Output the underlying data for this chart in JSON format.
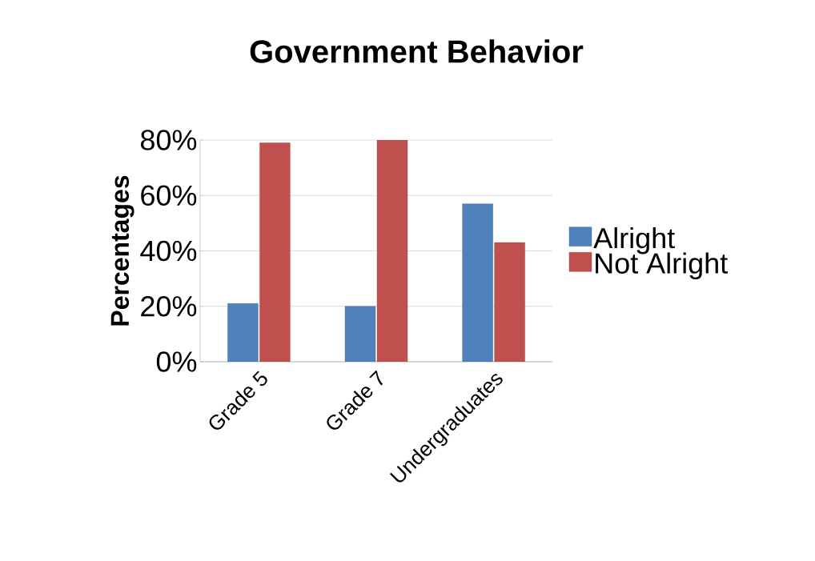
{
  "chart_data": {
    "type": "bar",
    "title": "Government Behavior",
    "ylabel": "Percentages",
    "categories": [
      "Grade 5",
      "Grade 7",
      "Undergraduates"
    ],
    "series": [
      {
        "name": "Alright",
        "color": "#4f81bd",
        "values": [
          21,
          20,
          57
        ]
      },
      {
        "name": "Not Alright",
        "color": "#c0504d",
        "values": [
          79,
          80,
          43
        ]
      }
    ],
    "ylim": [
      0,
      80
    ],
    "yticks": [
      {
        "value": 0,
        "label": "0%"
      },
      {
        "value": 20,
        "label": "20%"
      },
      {
        "value": 40,
        "label": "40%"
      },
      {
        "value": 60,
        "label": "60%"
      },
      {
        "value": 80,
        "label": "80%"
      }
    ],
    "grid": "y",
    "legend": "right"
  }
}
